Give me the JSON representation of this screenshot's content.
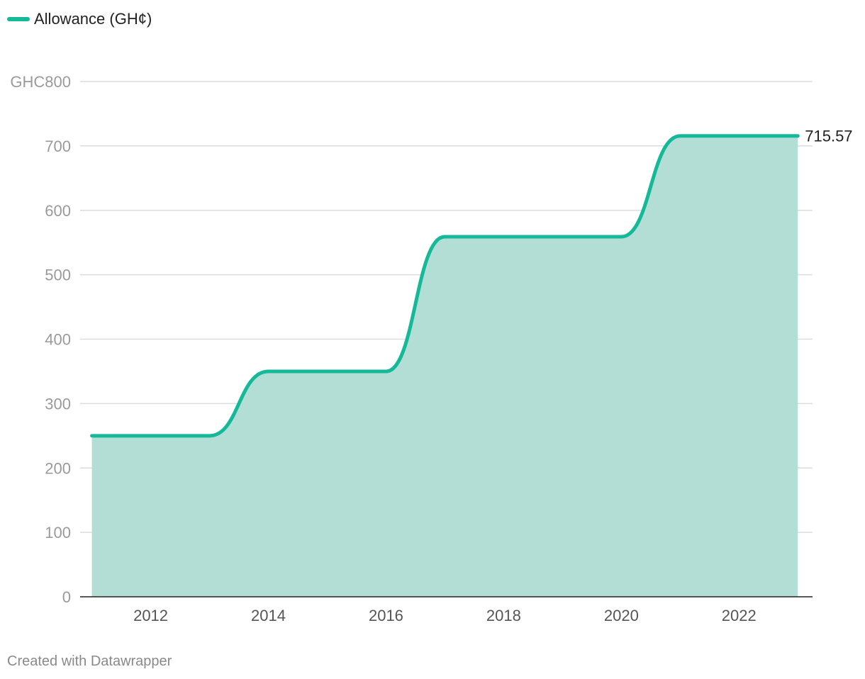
{
  "legend": {
    "label": "Allowance (GH¢)",
    "color": "#15b99a"
  },
  "footer": {
    "credit": "Created with Datawrapper"
  },
  "colors": {
    "line": "#15b99a",
    "area": "#b2ded5",
    "grid": "#dddddd",
    "axis": "#222222",
    "tick_text": "#9a9a9a",
    "x_tick_text": "#555555",
    "end_label": "#222222"
  },
  "chart_data": {
    "type": "area",
    "title": "",
    "xlabel": "",
    "ylabel": "",
    "x": [
      2011,
      2012,
      2013,
      2014,
      2015,
      2016,
      2017,
      2018,
      2019,
      2020,
      2021,
      2022,
      2023
    ],
    "series": [
      {
        "name": "Allowance (GH¢)",
        "values": [
          250,
          250,
          250,
          350,
          350,
          350,
          559,
          559,
          559,
          559,
          715.57,
          715.57,
          715.57
        ]
      }
    ],
    "xlim": [
      2010.8,
      2023.25
    ],
    "ylim": [
      0,
      800
    ],
    "y_ticks": [
      0,
      100,
      200,
      300,
      400,
      500,
      600,
      700,
      800
    ],
    "y_tick_labels": [
      "0",
      "100",
      "200",
      "300",
      "400",
      "500",
      "600",
      "700",
      "GHC800"
    ],
    "x_ticks": [
      2012,
      2014,
      2016,
      2018,
      2020,
      2022
    ],
    "x_tick_labels": [
      "2012",
      "2014",
      "2016",
      "2018",
      "2020",
      "2022"
    ],
    "end_label": "715.57",
    "grid": true,
    "legend_position": "top-left"
  }
}
